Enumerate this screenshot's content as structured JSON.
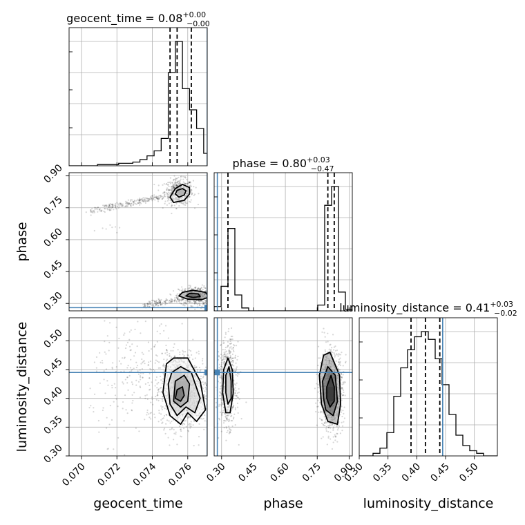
{
  "chart_data": {
    "type": "corner",
    "parameters": [
      "geocent_time",
      "phase",
      "luminosity_distance"
    ],
    "axis_labels": {
      "geocent_time": "geocent_time",
      "phase": "phase",
      "luminosity_distance": "luminosity_distance"
    },
    "titles": {
      "geocent_time": {
        "name": "geocent_time",
        "median": "0.08",
        "plus": "+0.00",
        "minus": "−0.00"
      },
      "phase": {
        "name": "phase",
        "median": "0.80",
        "plus": "+0.03",
        "minus": "−0.47"
      },
      "luminosity_distance": {
        "name": "luminosity_distance",
        "median": "0.41",
        "plus": "+0.03",
        "minus": "−0.02"
      }
    },
    "ranges": {
      "geocent_time": [
        0.0693,
        0.0771
      ],
      "phase": [
        0.265,
        0.915
      ],
      "luminosity_distance": [
        0.3,
        0.54
      ]
    },
    "ticks": {
      "geocent_time": {
        "values": [
          0.07,
          0.072,
          0.074,
          0.076
        ],
        "labels": [
          "0.070",
          "0.072",
          "0.074",
          "0.076"
        ]
      },
      "phase": {
        "values": [
          0.3,
          0.45,
          0.6,
          0.75,
          0.9
        ],
        "labels": [
          "0.30",
          "0.45",
          "0.60",
          "0.75",
          "0.90"
        ]
      },
      "luminosity_distance": {
        "values": [
          0.3,
          0.35,
          0.4,
          0.45,
          0.5
        ],
        "labels": [
          "0.30",
          "0.35",
          "0.40",
          "0.45",
          "0.50"
        ]
      }
    },
    "truths": {
      "geocent_time": 0.0771,
      "phase": 0.28,
      "luminosity_distance": 0.445
    },
    "quantiles": {
      "geocent_time": [
        0.075,
        0.0754,
        0.0762
      ],
      "phase": [
        0.33,
        0.8,
        0.83
      ],
      "luminosity_distance": [
        0.39,
        0.415,
        0.44
      ]
    },
    "histograms": {
      "geocent_time": {
        "edges": [
          0.0693,
          0.0697,
          0.0701,
          0.0705,
          0.0709,
          0.0713,
          0.0717,
          0.0721,
          0.0725,
          0.0729,
          0.0733,
          0.0737,
          0.0741,
          0.0745,
          0.0749,
          0.0753,
          0.0757,
          0.0761,
          0.0765,
          0.0769,
          0.0771
        ],
        "counts": [
          0,
          0,
          0,
          0,
          1,
          1,
          1,
          2,
          2,
          3,
          5,
          8,
          12,
          22,
          75,
          100,
          62,
          45,
          30,
          10
        ]
      },
      "phase": {
        "edges": [
          0.265,
          0.2975,
          0.33,
          0.3625,
          0.395,
          0.4275,
          0.46,
          0.4925,
          0.525,
          0.5575,
          0.59,
          0.6225,
          0.655,
          0.6875,
          0.72,
          0.7525,
          0.785,
          0.8175,
          0.85,
          0.8825,
          0.915
        ],
        "counts": [
          3,
          17,
          57,
          11,
          2,
          0,
          0,
          0,
          0,
          0,
          0,
          0,
          0,
          0,
          0,
          4,
          73,
          86,
          13,
          1
        ]
      },
      "luminosity_distance": {
        "edges": [
          0.3,
          0.312,
          0.324,
          0.336,
          0.348,
          0.36,
          0.372,
          0.384,
          0.396,
          0.408,
          0.42,
          0.432,
          0.444,
          0.456,
          0.468,
          0.48,
          0.492,
          0.504,
          0.516,
          0.528,
          0.54
        ],
        "counts": [
          0,
          0,
          2,
          6,
          18,
          46,
          68,
          82,
          92,
          96,
          90,
          75,
          55,
          32,
          16,
          8,
          4,
          2,
          0,
          0
        ]
      }
    },
    "scatter_clusters": {
      "geocent_time_phase": [
        {
          "x": 0.0755,
          "y": 0.825,
          "sx": 0.0004,
          "sy": 0.03,
          "n": 500
        },
        {
          "x": 0.0765,
          "y": 0.335,
          "sx": 0.0005,
          "sy": 0.022,
          "n": 500
        },
        {
          "line_from": [
            0.0705,
            0.735
          ],
          "line_to": [
            0.0745,
            0.8
          ],
          "spread": 0.008,
          "n": 220
        },
        {
          "line_from": [
            0.0735,
            0.29
          ],
          "line_to": [
            0.0762,
            0.33
          ],
          "spread": 0.008,
          "n": 160
        },
        {
          "x": 0.0715,
          "y": 0.665,
          "sx": 0.0003,
          "sy": 0.015,
          "n": 8
        }
      ],
      "geocent_time_luminosity_distance": [
        {
          "x": 0.0755,
          "y": 0.415,
          "sx": 0.0005,
          "sy": 0.032,
          "n": 800
        },
        {
          "x": 0.0763,
          "y": 0.41,
          "sx": 0.0005,
          "sy": 0.03,
          "n": 350
        },
        {
          "x": 0.0735,
          "y": 0.43,
          "sx": 0.0015,
          "sy": 0.05,
          "n": 280
        }
      ],
      "phase_luminosity_distance": [
        {
          "x": 0.33,
          "y": 0.425,
          "sx": 0.02,
          "sy": 0.035,
          "n": 700
        },
        {
          "x": 0.815,
          "y": 0.415,
          "sx": 0.028,
          "sy": 0.035,
          "n": 900
        }
      ]
    },
    "contours": {
      "geocent_time_phase": [
        [
          [
            0.075,
            0.8
          ],
          [
            0.0752,
            0.775
          ],
          [
            0.0758,
            0.785
          ],
          [
            0.0761,
            0.815
          ],
          [
            0.0761,
            0.845
          ],
          [
            0.0757,
            0.86
          ],
          [
            0.0753,
            0.84
          ]
        ],
        [
          [
            0.0753,
            0.815
          ],
          [
            0.0755,
            0.8
          ],
          [
            0.0758,
            0.81
          ],
          [
            0.0759,
            0.83
          ],
          [
            0.0757,
            0.84
          ],
          [
            0.0754,
            0.832
          ]
        ],
        [
          [
            0.0755,
            0.335
          ],
          [
            0.076,
            0.32
          ],
          [
            0.0768,
            0.318
          ],
          [
            0.0772,
            0.33
          ],
          [
            0.077,
            0.352
          ],
          [
            0.0763,
            0.362
          ],
          [
            0.0757,
            0.352
          ]
        ],
        [
          [
            0.0759,
            0.335
          ],
          [
            0.0763,
            0.328
          ],
          [
            0.0767,
            0.332
          ],
          [
            0.0766,
            0.345
          ],
          [
            0.0761,
            0.347
          ]
        ]
      ],
      "geocent_time_luminosity_distance": [
        [
          [
            0.0748,
            0.46
          ],
          [
            0.0752,
            0.47
          ],
          [
            0.076,
            0.47
          ],
          [
            0.0767,
            0.43
          ],
          [
            0.077,
            0.38
          ],
          [
            0.0765,
            0.36
          ],
          [
            0.076,
            0.375
          ],
          [
            0.0756,
            0.355
          ],
          [
            0.075,
            0.37
          ],
          [
            0.0746,
            0.41
          ]
        ],
        [
          [
            0.0751,
            0.445
          ],
          [
            0.0756,
            0.455
          ],
          [
            0.0762,
            0.445
          ],
          [
            0.0767,
            0.4
          ],
          [
            0.0764,
            0.375
          ],
          [
            0.0759,
            0.385
          ],
          [
            0.0754,
            0.37
          ],
          [
            0.075,
            0.39
          ],
          [
            0.0749,
            0.425
          ]
        ],
        [
          [
            0.0753,
            0.43
          ],
          [
            0.0758,
            0.44
          ],
          [
            0.0761,
            0.425
          ],
          [
            0.076,
            0.395
          ],
          [
            0.0756,
            0.385
          ],
          [
            0.0752,
            0.395
          ]
        ],
        [
          [
            0.0754,
            0.415
          ],
          [
            0.0757,
            0.42
          ],
          [
            0.0758,
            0.405
          ],
          [
            0.0756,
            0.395
          ],
          [
            0.0753,
            0.4
          ]
        ]
      ],
      "phase_luminosity_distance": [
        [
          [
            0.31,
            0.45
          ],
          [
            0.33,
            0.47
          ],
          [
            0.35,
            0.45
          ],
          [
            0.355,
            0.41
          ],
          [
            0.34,
            0.375
          ],
          [
            0.32,
            0.375
          ],
          [
            0.305,
            0.41
          ]
        ],
        [
          [
            0.32,
            0.44
          ],
          [
            0.335,
            0.455
          ],
          [
            0.345,
            0.43
          ],
          [
            0.345,
            0.4
          ],
          [
            0.33,
            0.39
          ],
          [
            0.32,
            0.41
          ]
        ],
        [
          [
            0.76,
            0.44
          ],
          [
            0.78,
            0.475
          ],
          [
            0.81,
            0.48
          ],
          [
            0.855,
            0.44
          ],
          [
            0.86,
            0.39
          ],
          [
            0.845,
            0.355
          ],
          [
            0.8,
            0.36
          ],
          [
            0.77,
            0.39
          ]
        ],
        [
          [
            0.775,
            0.43
          ],
          [
            0.8,
            0.455
          ],
          [
            0.835,
            0.44
          ],
          [
            0.845,
            0.395
          ],
          [
            0.825,
            0.37
          ],
          [
            0.79,
            0.38
          ],
          [
            0.78,
            0.4
          ]
        ],
        [
          [
            0.795,
            0.42
          ],
          [
            0.815,
            0.44
          ],
          [
            0.83,
            0.42
          ],
          [
            0.83,
            0.395
          ],
          [
            0.81,
            0.385
          ],
          [
            0.795,
            0.4
          ]
        ]
      ]
    },
    "density_blocks": {
      "geocent_time_luminosity_distance": [
        {
          "x0": 0.0752,
          "x1": 0.0756,
          "y0": 0.43,
          "y1": 0.445,
          "shade": "#aaaaaa"
        },
        {
          "x0": 0.0752,
          "x1": 0.0756,
          "y0": 0.415,
          "y1": 0.43,
          "shade": "#555555"
        },
        {
          "x0": 0.0752,
          "x1": 0.0756,
          "y0": 0.39,
          "y1": 0.415,
          "shade": "#111111"
        },
        {
          "x0": 0.0756,
          "x1": 0.076,
          "y0": 0.4,
          "y1": 0.43,
          "shade": "#888888"
        }
      ],
      "phase_luminosity_distance": [
        {
          "x0": 0.325,
          "x1": 0.342,
          "y0": 0.4,
          "y1": 0.445,
          "shade": "#888888"
        },
        {
          "x0": 0.8,
          "x1": 0.825,
          "y0": 0.42,
          "y1": 0.435,
          "shade": "#777777"
        },
        {
          "x0": 0.8,
          "x1": 0.825,
          "y0": 0.395,
          "y1": 0.42,
          "shade": "#111111"
        }
      ],
      "geocent_time_phase": [
        {
          "x0": 0.0754,
          "x1": 0.0758,
          "y0": 0.81,
          "y1": 0.835,
          "shade": "#111111"
        }
      ]
    },
    "colors": {
      "truth": "#4682b4",
      "contour": "#000000",
      "scatter": "#000000"
    }
  }
}
